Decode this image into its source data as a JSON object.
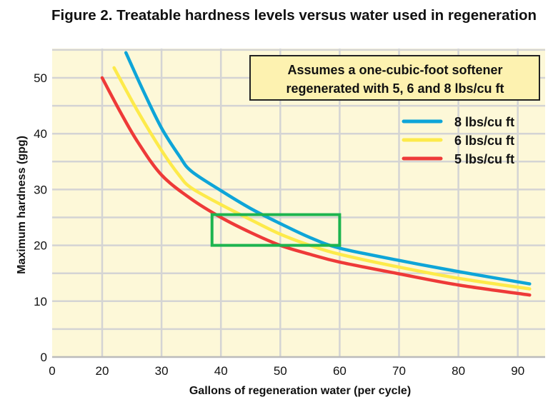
{
  "chart_data": {
    "type": "line",
    "title": "Figure 2. Treatable hardness levels versus water used in regeneration",
    "xlabel": "Gallons of regeneration water (per cycle)",
    "ylabel": "Maximum hardness (gpg)",
    "x_ticks": [
      "0",
      "20",
      "30",
      "40",
      "50",
      "60",
      "70",
      "80",
      "90"
    ],
    "y_ticks": [
      "0",
      "10",
      "20",
      "30",
      "40",
      "50"
    ],
    "xlim": [
      20,
      94
    ],
    "x_axis_break": "0 label at axis origin, scale begins at 20",
    "ylim": [
      0,
      55
    ],
    "grid": true,
    "background_color": "#fdf8d8",
    "annotation": {
      "lines": [
        "Assumes a one-cubic-foot softener",
        "regenerated with 5, 6 and 8 lbs/cu ft"
      ],
      "fill": "#fdf2b0"
    },
    "legend_placement": "top-right",
    "highlight_box": {
      "x": [
        38.5,
        60
      ],
      "y": [
        20,
        25.5
      ],
      "color": "#1db44f"
    },
    "series": [
      {
        "name": "8 lbs/cu ft",
        "color": "#0ea5d8",
        "points": [
          [
            24,
            54.5
          ],
          [
            27,
            47.5
          ],
          [
            30,
            41
          ],
          [
            33,
            36
          ],
          [
            35,
            33.3
          ],
          [
            40,
            29.8
          ],
          [
            45,
            26.6
          ],
          [
            50,
            23.9
          ],
          [
            55,
            21.4
          ],
          [
            60,
            19.5
          ],
          [
            70,
            17.3
          ],
          [
            80,
            15.3
          ],
          [
            92,
            13.1
          ]
        ]
      },
      {
        "name": "6 lbs/cu ft",
        "color": "#fdea4a",
        "points": [
          [
            22,
            51.8
          ],
          [
            26,
            44
          ],
          [
            30,
            37
          ],
          [
            33,
            32.5
          ],
          [
            35,
            30.3
          ],
          [
            40,
            27.3
          ],
          [
            45,
            24.6
          ],
          [
            50,
            22
          ],
          [
            55,
            20
          ],
          [
            60,
            18.4
          ],
          [
            70,
            16.1
          ],
          [
            80,
            14.1
          ],
          [
            92,
            12.2
          ]
        ]
      },
      {
        "name": "5 lbs/cu ft",
        "color": "#ee3a38",
        "points": [
          [
            20,
            50
          ],
          [
            23,
            44
          ],
          [
            26,
            38.5
          ],
          [
            30,
            32.6
          ],
          [
            35,
            28.3
          ],
          [
            40,
            25
          ],
          [
            45,
            22.3
          ],
          [
            50,
            20
          ],
          [
            55,
            18.4
          ],
          [
            60,
            17
          ],
          [
            70,
            14.9
          ],
          [
            80,
            12.9
          ],
          [
            92,
            11.1
          ]
        ]
      }
    ]
  }
}
